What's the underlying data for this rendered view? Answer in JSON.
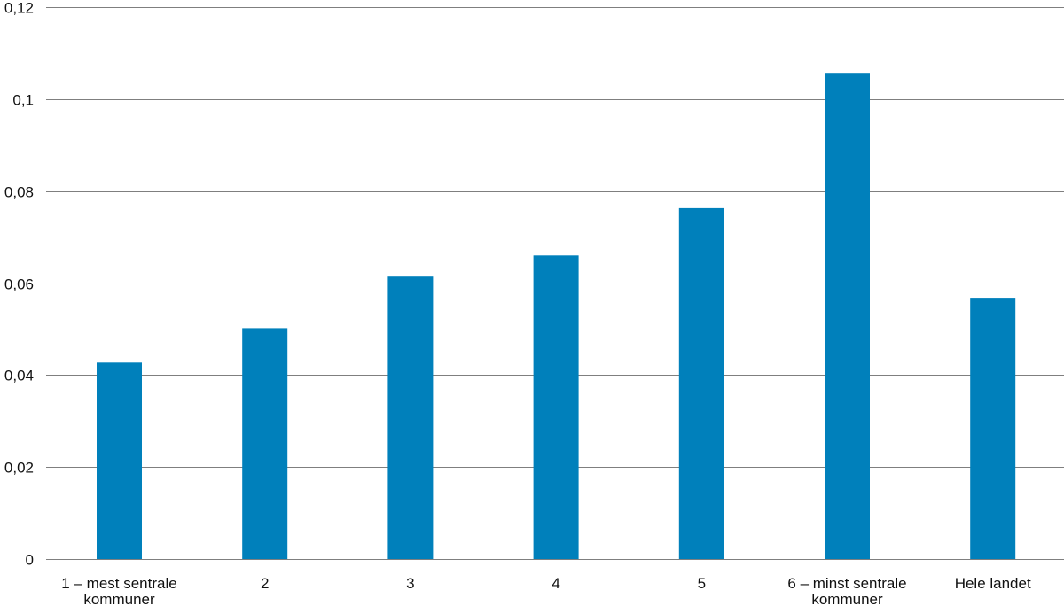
{
  "chart_data": {
    "type": "bar",
    "categories": [
      [
        "1 – mest sentrale",
        "kommuner"
      ],
      [
        "2"
      ],
      [
        "3"
      ],
      [
        "4"
      ],
      [
        "5"
      ],
      [
        "6 – minst sentrale",
        "kommuner"
      ],
      [
        "Hele landet"
      ]
    ],
    "values": [
      0.0427,
      0.0502,
      0.0614,
      0.066,
      0.0763,
      0.1057,
      0.0568
    ],
    "ylim": [
      0,
      0.12
    ],
    "yticks": [
      0,
      0.02,
      0.04,
      0.06,
      0.08,
      0.1,
      0.12
    ],
    "ytick_labels": [
      "0",
      "0,02",
      "0,04",
      "0,06",
      "0,08",
      "0,1",
      "0,12"
    ],
    "grid": true,
    "bar_color": "#0080bb",
    "grid_color": "#7f7f7f",
    "title": "",
    "xlabel": "",
    "ylabel": ""
  }
}
